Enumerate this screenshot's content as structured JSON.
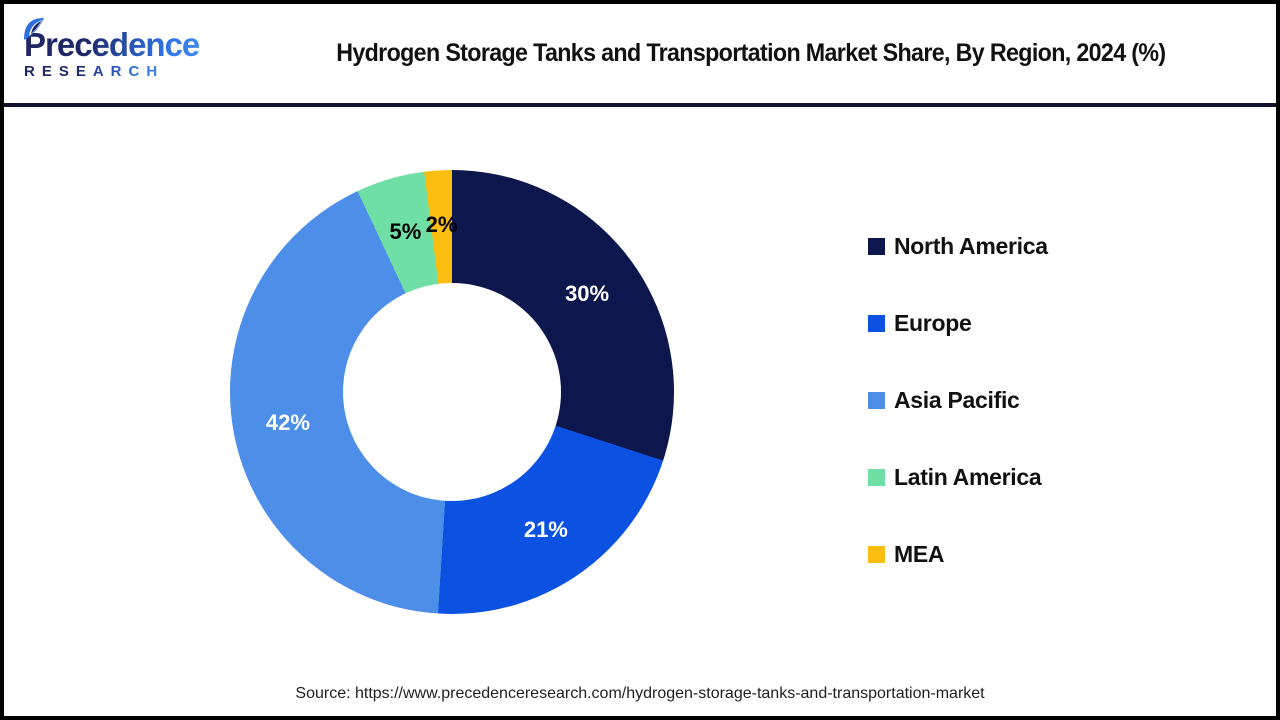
{
  "header": {
    "logo_line1": "Precedence",
    "logo_line2": "RESEARCH",
    "title": "Hydrogen Storage Tanks and Transportation Market Share, By Region, 2024 (%)"
  },
  "chart_data": {
    "type": "pie",
    "subtype": "donut",
    "title": "Hydrogen Storage Tanks and Transportation Market Share, By Region, 2024 (%)",
    "categories": [
      "North America",
      "Europe",
      "Asia Pacific",
      "Latin America",
      "MEA"
    ],
    "values": [
      30,
      21,
      42,
      5,
      2
    ],
    "unit": "%",
    "colors": [
      "#0E164E",
      "#0B51E2",
      "#4D8EE8",
      "#6FDFA5",
      "#FBBE10"
    ],
    "label_colors": [
      "#FFFFFF",
      "#FFFFFF",
      "#FFFFFF",
      "#000000",
      "#000000"
    ],
    "start_angle_deg": 0,
    "direction": "clockwise",
    "hole_ratio": 0.49,
    "legend_position": "right"
  },
  "footer": {
    "source": "Source: https://www.precedenceresearch.com/hydrogen-storage-tanks-and-transportation-market"
  }
}
